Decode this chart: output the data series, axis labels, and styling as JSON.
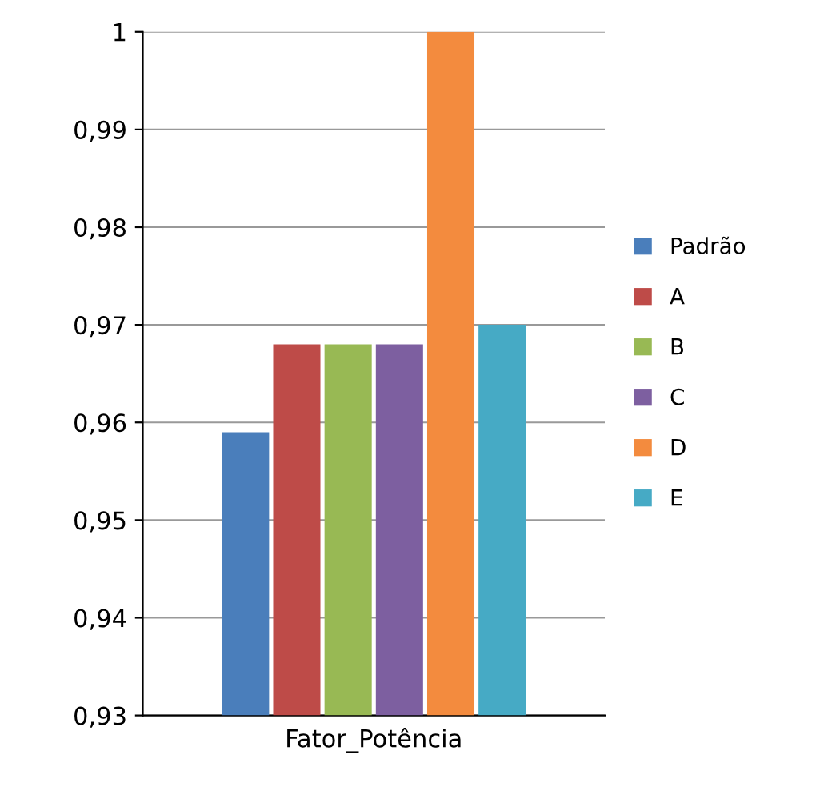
{
  "chart_data": {
    "type": "bar",
    "categories": [
      null
    ],
    "xlabel": "Fator_Potência",
    "series": [
      {
        "name": "Padrão",
        "color": "#4a7ebb",
        "values": [
          0.959
        ]
      },
      {
        "name": "A",
        "color": "#be4b48",
        "values": [
          0.968
        ]
      },
      {
        "name": "B",
        "color": "#98b954",
        "values": [
          0.968
        ]
      },
      {
        "name": "C",
        "color": "#7d5fa0",
        "values": [
          0.968
        ]
      },
      {
        "name": "D",
        "color": "#f38b3e",
        "values": [
          1
        ]
      },
      {
        "name": "E",
        "color": "#46aac5",
        "values": [
          0.97
        ]
      }
    ],
    "ylim": [
      0.93,
      1
    ],
    "yticks": [
      {
        "value": 0.93,
        "label": "0,93"
      },
      {
        "value": 0.94,
        "label": "0,94"
      },
      {
        "value": 0.95,
        "label": "0,95"
      },
      {
        "value": 0.96,
        "label": "0,96"
      },
      {
        "value": 0.97,
        "label": "0,97"
      },
      {
        "value": 0.98,
        "label": "0,98"
      },
      {
        "value": 0.99,
        "label": "0,99"
      },
      1
    ],
    "grid": "y",
    "legend": "right"
  }
}
